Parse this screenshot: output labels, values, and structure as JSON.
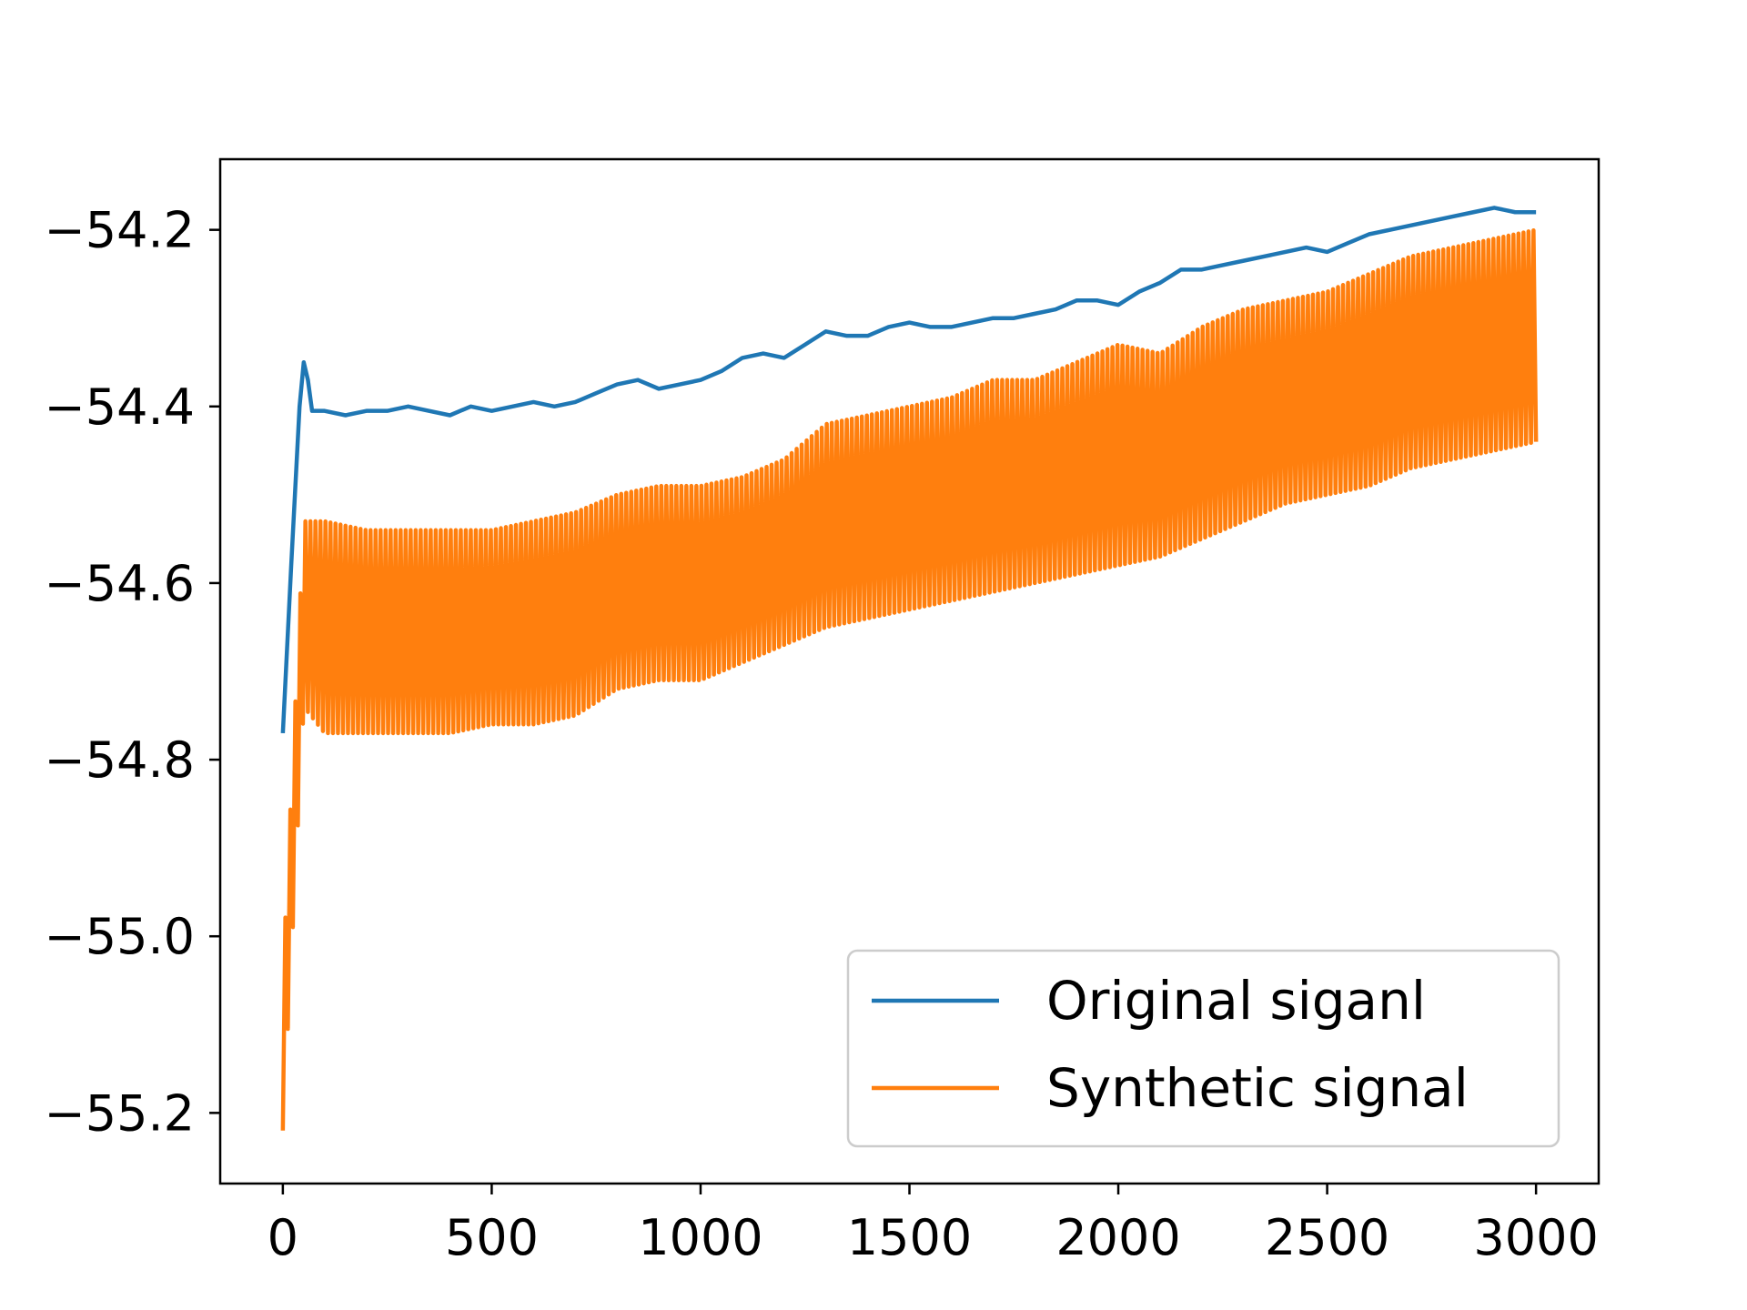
{
  "chart_data": {
    "type": "line",
    "title": "",
    "xlabel": "",
    "ylabel": "",
    "xlim": [
      -150,
      3150
    ],
    "ylim": [
      -55.28,
      -54.12
    ],
    "x_ticks": [
      0,
      500,
      1000,
      1500,
      2000,
      2500,
      3000
    ],
    "x_tick_labels": [
      "0",
      "500",
      "1000",
      "1500",
      "2000",
      "2500",
      "3000"
    ],
    "y_ticks": [
      -54.2,
      -54.4,
      -54.6,
      -54.8,
      -55.0,
      -55.2
    ],
    "y_tick_labels": [
      "−54.2",
      "−54.4",
      "−54.6",
      "−54.8",
      "−55.0",
      "−55.2"
    ],
    "grid": false,
    "legend_position": "lower-right",
    "series": [
      {
        "name": "Original siganl",
        "color": "#1f77b4",
        "x": [
          0,
          20,
          40,
          50,
          60,
          70,
          100,
          150,
          200,
          250,
          300,
          350,
          400,
          450,
          500,
          550,
          600,
          650,
          700,
          750,
          800,
          850,
          900,
          950,
          1000,
          1050,
          1100,
          1150,
          1200,
          1250,
          1300,
          1350,
          1400,
          1450,
          1500,
          1550,
          1600,
          1650,
          1700,
          1750,
          1800,
          1850,
          1900,
          1950,
          2000,
          2050,
          2100,
          2150,
          2200,
          2250,
          2300,
          2350,
          2400,
          2450,
          2500,
          2550,
          2600,
          2650,
          2700,
          2750,
          2800,
          2850,
          2900,
          2950,
          3000
        ],
        "values": [
          -54.77,
          -54.58,
          -54.4,
          -54.35,
          -54.37,
          -54.405,
          -54.405,
          -54.41,
          -54.405,
          -54.405,
          -54.4,
          -54.405,
          -54.41,
          -54.4,
          -54.405,
          -54.4,
          -54.395,
          -54.4,
          -54.395,
          -54.385,
          -54.375,
          -54.37,
          -54.38,
          -54.375,
          -54.37,
          -54.36,
          -54.345,
          -54.34,
          -54.345,
          -54.33,
          -54.315,
          -54.32,
          -54.32,
          -54.31,
          -54.305,
          -54.31,
          -54.31,
          -54.305,
          -54.3,
          -54.3,
          -54.295,
          -54.29,
          -54.28,
          -54.28,
          -54.285,
          -54.27,
          -54.26,
          -54.245,
          -54.245,
          -54.24,
          -54.235,
          -54.23,
          -54.225,
          -54.22,
          -54.225,
          -54.215,
          -54.205,
          -54.2,
          -54.195,
          -54.19,
          -54.185,
          -54.18,
          -54.175,
          -54.18,
          -54.18
        ]
      },
      {
        "name": "Synthetic signal",
        "color": "#ff7f0e",
        "x": [
          0,
          50,
          100,
          200,
          300,
          400,
          500,
          600,
          700,
          800,
          900,
          1000,
          1100,
          1200,
          1300,
          1400,
          1500,
          1600,
          1700,
          1800,
          1900,
          2000,
          2100,
          2200,
          2300,
          2400,
          2500,
          2600,
          2700,
          2800,
          2900,
          3000
        ],
        "upper": [
          -55.04,
          -54.53,
          -54.53,
          -54.54,
          -54.54,
          -54.54,
          -54.54,
          -54.53,
          -54.52,
          -54.5,
          -54.49,
          -54.49,
          -54.48,
          -54.46,
          -54.42,
          -54.41,
          -54.4,
          -54.39,
          -54.37,
          -54.37,
          -54.35,
          -54.33,
          -54.34,
          -54.31,
          -54.29,
          -54.28,
          -54.27,
          -54.25,
          -54.23,
          -54.22,
          -54.21,
          -54.2
        ],
        "lower": [
          -55.22,
          -54.74,
          -54.77,
          -54.77,
          -54.77,
          -54.77,
          -54.76,
          -54.76,
          -54.75,
          -54.72,
          -54.71,
          -54.71,
          -54.69,
          -54.67,
          -54.65,
          -54.64,
          -54.63,
          -54.62,
          -54.61,
          -54.6,
          -54.59,
          -54.58,
          -54.57,
          -54.55,
          -54.53,
          -54.51,
          -54.5,
          -54.49,
          -54.47,
          -54.46,
          -54.45,
          -54.44
        ]
      }
    ]
  }
}
